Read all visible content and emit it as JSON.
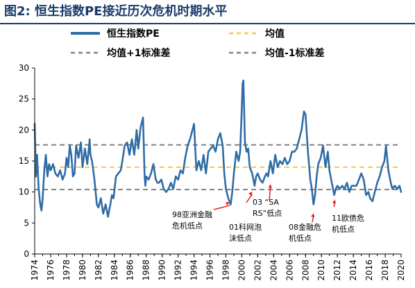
{
  "title": "图2:  恒生指数PE接近历次危机时期水平",
  "chart_data": {
    "type": "line",
    "title": "图2:  恒生指数PE接近历次危机时期水平",
    "xlim": [
      1974,
      2020
    ],
    "ylim": [
      0,
      30
    ],
    "y_ticks": [
      "0",
      "5",
      "10",
      "15",
      "20",
      "25",
      "30"
    ],
    "x_ticks": [
      "1974",
      "1976",
      "1978",
      "1980",
      "1982",
      "1984",
      "1986",
      "1988",
      "1990",
      "1992",
      "1994",
      "1996",
      "1998",
      "2000",
      "2002",
      "2004",
      "2006",
      "2008",
      "2010",
      "2012",
      "2014",
      "2016",
      "2018",
      "2020"
    ],
    "legend_position": "top",
    "grid": false,
    "series": [
      {
        "name": "恒生指数PE",
        "color": "#2e6ca6",
        "x": [
          1974.0,
          1974.15,
          1974.3,
          1974.5,
          1974.7,
          1974.85,
          1975.0,
          1975.2,
          1975.4,
          1975.6,
          1975.8,
          1976.0,
          1976.3,
          1976.6,
          1976.9,
          1977.2,
          1977.5,
          1977.8,
          1978.0,
          1978.2,
          1978.4,
          1978.6,
          1978.8,
          1979.0,
          1979.2,
          1979.5,
          1979.8,
          1980.0,
          1980.3,
          1980.6,
          1980.9,
          1981.0,
          1981.2,
          1981.5,
          1981.8,
          1982.0,
          1982.3,
          1982.6,
          1982.9,
          1983.2,
          1983.5,
          1983.7,
          1983.9,
          1984.2,
          1984.5,
          1984.8,
          1985.0,
          1985.3,
          1985.6,
          1985.9,
          1986.2,
          1986.5,
          1986.8,
          1987.0,
          1987.3,
          1987.6,
          1987.8,
          1987.9,
          1988.0,
          1988.3,
          1988.6,
          1988.9,
          1989.2,
          1989.4,
          1989.6,
          1989.9,
          1990.2,
          1990.5,
          1990.8,
          1991.1,
          1991.4,
          1991.7,
          1992.0,
          1992.3,
          1992.6,
          1992.9,
          1993.2,
          1993.5,
          1993.8,
          1994.0,
          1994.3,
          1994.6,
          1994.9,
          1995.2,
          1995.5,
          1995.8,
          1996.1,
          1996.4,
          1996.7,
          1997.0,
          1997.3,
          1997.6,
          1997.8,
          1998.0,
          1998.3,
          1998.6,
          1998.8,
          1999.0,
          1999.3,
          1999.6,
          1999.8,
          2000.0,
          2000.1,
          2000.2,
          2000.4,
          2000.6,
          2000.8,
          2001.0,
          2001.3,
          2001.6,
          2001.8,
          2002.0,
          2002.3,
          2002.6,
          2002.9,
          2003.1,
          2003.3,
          2003.6,
          2003.9,
          2004.2,
          2004.5,
          2004.8,
          2005.1,
          2005.4,
          2005.7,
          2006.0,
          2006.3,
          2006.6,
          2006.9,
          2007.2,
          2007.5,
          2007.8,
          2008.0,
          2008.3,
          2008.6,
          2008.8,
          2009.0,
          2009.2,
          2009.4,
          2009.6,
          2009.9,
          2010.2,
          2010.5,
          2010.8,
          2011.0,
          2011.3,
          2011.6,
          2011.8,
          2012.0,
          2012.3,
          2012.6,
          2012.9,
          2013.2,
          2013.5,
          2013.8,
          2014.1,
          2014.4,
          2014.7,
          2015.0,
          2015.3,
          2015.6,
          2015.9,
          2016.1,
          2016.4,
          2016.7,
          2017.0,
          2017.3,
          2017.6,
          2017.9,
          2018.1,
          2018.4,
          2018.7,
          2018.9,
          2019.2,
          2019.5,
          2019.8,
          2020.0
        ],
        "values": [
          21.0,
          12.5,
          16.0,
          10.5,
          8.0,
          7.0,
          9.0,
          13.5,
          16.0,
          12.5,
          14.5,
          13.5,
          14.5,
          13.0,
          12.5,
          13.5,
          12.0,
          13.0,
          15.5,
          14.0,
          17.5,
          16.0,
          12.5,
          13.0,
          17.5,
          15.5,
          18.0,
          14.0,
          17.0,
          14.5,
          18.5,
          16.0,
          15.0,
          12.0,
          8.0,
          7.5,
          9.0,
          6.5,
          8.0,
          6.0,
          8.0,
          9.5,
          9.0,
          12.5,
          13.0,
          13.5,
          15.0,
          17.5,
          18.0,
          16.0,
          18.5,
          16.0,
          20.0,
          17.0,
          20.5,
          22.0,
          12.5,
          11.0,
          12.5,
          12.0,
          13.0,
          14.5,
          12.0,
          11.5,
          11.5,
          12.0,
          10.5,
          10.0,
          10.5,
          11.5,
          10.5,
          12.5,
          12.0,
          13.5,
          13.0,
          15.5,
          17.5,
          18.5,
          20.0,
          21.0,
          13.5,
          15.0,
          13.5,
          16.0,
          13.0,
          16.5,
          17.0,
          17.5,
          16.5,
          18.5,
          19.5,
          17.5,
          13.0,
          10.5,
          9.0,
          8.0,
          10.0,
          13.0,
          16.5,
          15.0,
          16.5,
          23.5,
          27.5,
          28.0,
          18.0,
          16.5,
          17.0,
          14.0,
          13.0,
          11.0,
          12.5,
          13.0,
          12.0,
          11.5,
          12.5,
          13.0,
          12.5,
          15.0,
          13.0,
          16.0,
          14.0,
          15.0,
          14.5,
          15.5,
          14.5,
          15.0,
          16.5,
          16.5,
          17.0,
          18.5,
          20.0,
          23.0,
          22.5,
          16.5,
          12.0,
          10.5,
          8.0,
          9.5,
          12.5,
          14.5,
          15.5,
          17.5,
          14.0,
          16.5,
          13.5,
          11.5,
          9.5,
          10.5,
          11.0,
          10.5,
          11.0,
          10.5,
          11.5,
          10.0,
          11.0,
          11.0,
          11.0,
          12.0,
          13.0,
          12.0,
          9.5,
          10.0,
          9.0,
          8.5,
          10.0,
          11.5,
          12.5,
          14.0,
          15.0,
          17.5,
          13.5,
          11.5,
          10.5,
          11.0,
          10.5,
          11.0,
          10.0
        ]
      },
      {
        "name": "均值",
        "color": "#f2c94c",
        "dash": "dashed",
        "value": 14.0
      },
      {
        "name": "均值+1标准差",
        "color": "#808080",
        "dash": "dashed",
        "value": 17.6
      },
      {
        "name": "均值-1标准差",
        "color": "#808080",
        "dash": "dashed",
        "value": 10.4
      }
    ],
    "annotations": [
      {
        "lines": [
          "98亚洲金融",
          "危机低点"
        ],
        "at": [
          1998.5,
          8.5
        ],
        "arrow_color": "#e02020"
      },
      {
        "lines": [
          "01科网泡",
          "沫低点"
        ],
        "at": [
          2001.3,
          10.3
        ],
        "arrow_color": "#e02020"
      },
      {
        "lines": [
          "03 “SA",
          "RS”低点"
        ],
        "at": [
          2003.6,
          11.5
        ],
        "arrow_color": "#e02020"
      },
      {
        "lines": [
          "08金融危",
          "机低点"
        ],
        "at": [
          2009.0,
          6.8
        ],
        "arrow_color": "#e02020"
      },
      {
        "lines": [
          "11欧债危",
          "机低点"
        ],
        "at": [
          2011.7,
          9.0
        ],
        "arrow_color": "#e02020"
      }
    ]
  }
}
